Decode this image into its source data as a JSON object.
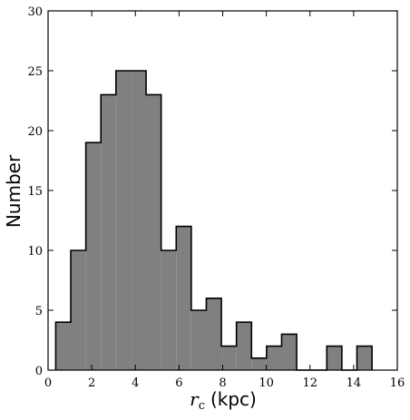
{
  "chart_data": {
    "type": "bar",
    "title": "",
    "xlabel": {
      "symbol": "r",
      "subscript": "c",
      "unit": "(kpc)"
    },
    "ylabel": "Number",
    "xlim": [
      0,
      16
    ],
    "ylim": [
      0,
      30
    ],
    "x_ticks": [
      0,
      2,
      4,
      6,
      8,
      10,
      12,
      14,
      16
    ],
    "y_ticks": [
      0,
      5,
      10,
      15,
      20,
      25,
      30
    ],
    "grid": false,
    "legend": "none",
    "bar_color": "#808080",
    "edge_color": "#000000",
    "bins": [
      {
        "x0": 0.35,
        "x1": 1.04,
        "count": 4
      },
      {
        "x0": 1.04,
        "x1": 1.73,
        "count": 10
      },
      {
        "x0": 1.73,
        "x1": 2.42,
        "count": 19
      },
      {
        "x0": 2.42,
        "x1": 3.11,
        "count": 23
      },
      {
        "x0": 3.11,
        "x1": 3.8,
        "count": 25
      },
      {
        "x0": 3.8,
        "x1": 4.49,
        "count": 25
      },
      {
        "x0": 4.49,
        "x1": 5.18,
        "count": 23
      },
      {
        "x0": 5.18,
        "x1": 5.87,
        "count": 10
      },
      {
        "x0": 5.87,
        "x1": 6.56,
        "count": 12
      },
      {
        "x0": 6.56,
        "x1": 7.25,
        "count": 5
      },
      {
        "x0": 7.25,
        "x1": 7.94,
        "count": 6
      },
      {
        "x0": 7.94,
        "x1": 8.63,
        "count": 2
      },
      {
        "x0": 8.63,
        "x1": 9.32,
        "count": 4
      },
      {
        "x0": 9.32,
        "x1": 10.01,
        "count": 1
      },
      {
        "x0": 10.01,
        "x1": 10.7,
        "count": 2
      },
      {
        "x0": 10.7,
        "x1": 11.39,
        "count": 3
      },
      {
        "x0": 11.39,
        "x1": 12.08,
        "count": 0
      },
      {
        "x0": 12.08,
        "x1": 12.77,
        "count": 0
      },
      {
        "x0": 12.77,
        "x1": 13.46,
        "count": 2
      },
      {
        "x0": 13.46,
        "x1": 14.15,
        "count": 0
      },
      {
        "x0": 14.15,
        "x1": 14.84,
        "count": 2
      }
    ]
  }
}
